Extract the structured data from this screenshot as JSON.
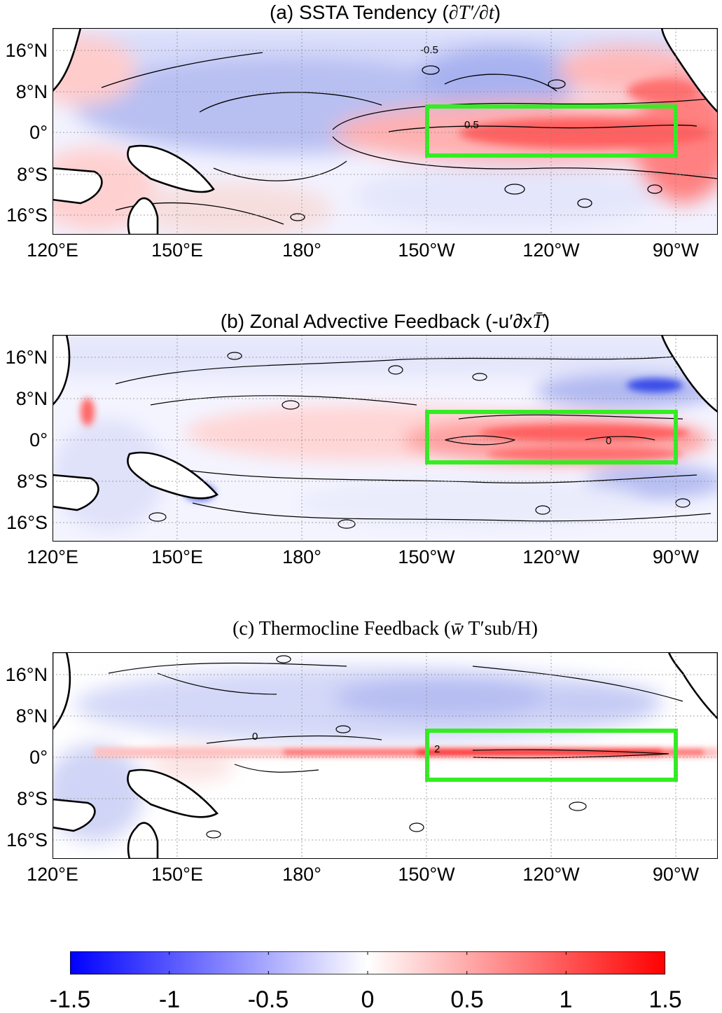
{
  "panels": [
    {
      "id": "a",
      "title_prefix": "(a) SSTA Tendency (",
      "title_expr": "∂T′/∂t",
      "title_suffix": ")",
      "contour_label": "0.5",
      "contour_label_neg": "-0.5",
      "box": {
        "lon_west": "150°W",
        "lon_east": "90°W",
        "lat_south": "8°S",
        "lat_north": "8°N"
      }
    },
    {
      "id": "b",
      "title_prefix": "(b) Zonal Advective Feedback (-u′∂x",
      "title_expr": "T̄",
      "title_suffix": ")",
      "contour_label": "0"
    },
    {
      "id": "c",
      "title_prefix": "(c) Thermocline Feedback (",
      "title_expr": "w̄",
      "title_suffix": " T′sub/H)",
      "contour_label": "0",
      "contour_label_pos": "2"
    }
  ],
  "axes": {
    "lat_ticks": [
      "16°N",
      "8°N",
      "0°",
      "8°S",
      "16°S"
    ],
    "lon_ticks": [
      "120°E",
      "150°E",
      "180°",
      "150°W",
      "120°W",
      "90°W"
    ]
  },
  "colorbar": {
    "ticks": [
      "-1.5",
      "-1",
      "-0.5",
      "0",
      "0.5",
      "1",
      "1.5"
    ],
    "min_color": "#0000ff",
    "mid_color": "#ffffff",
    "max_color": "#ff0000"
  },
  "colors": {
    "box": "#33ee22",
    "land": "#ffffff",
    "coast": "#000000"
  }
}
